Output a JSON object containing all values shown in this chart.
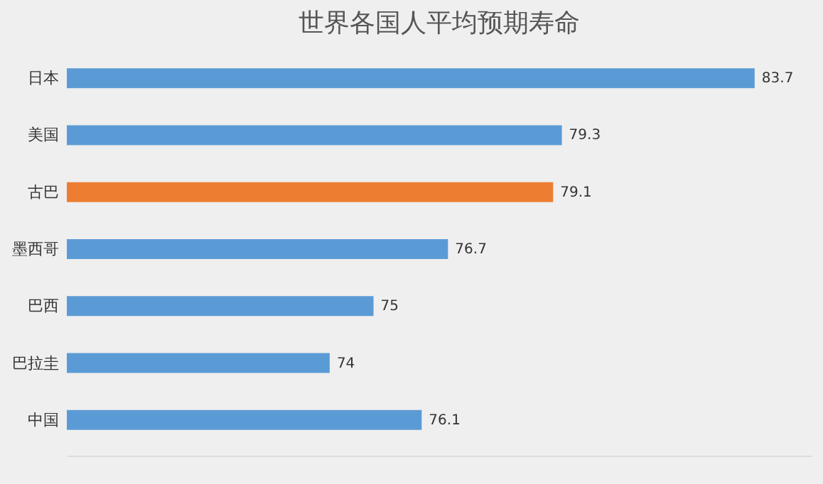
{
  "chart_data": {
    "type": "bar",
    "orientation": "horizontal",
    "title": "世界各国人平均预期寿命",
    "categories": [
      "日本",
      "美国",
      "古巴",
      "墨西哥",
      "巴西",
      "巴拉圭",
      "中国"
    ],
    "values": [
      83.7,
      79.3,
      79.1,
      76.7,
      75,
      74,
      76.1
    ],
    "colors": [
      "#5b9bd5",
      "#5b9bd5",
      "#ed7d31",
      "#5b9bd5",
      "#5b9bd5",
      "#5b9bd5",
      "#5b9bd5"
    ],
    "xlim": [
      68,
      85
    ],
    "data_labels": true,
    "grid": false
  }
}
